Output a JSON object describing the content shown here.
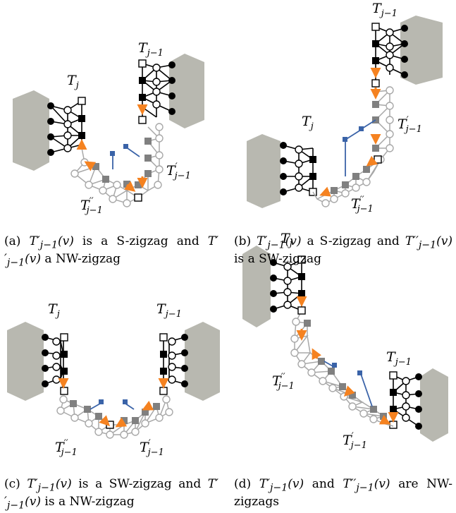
{
  "colors": {
    "gray_region": "#b8b8b0",
    "gray_node": "#808080",
    "gray_edge": "#a8a8a8",
    "black": "#000000",
    "orange": "#f58220",
    "blue": "#3a63a8"
  },
  "labels": {
    "Tj": "T_j",
    "Tjm1": "T_{j-1}",
    "Tp": "T'_{j-1}",
    "Tpp": "T''_{j-1}"
  },
  "label_text": {
    "T": "T",
    "j": "j",
    "jm1": "j−1",
    "prime": "′",
    "dprime": "′′"
  },
  "captions": {
    "a": "(a) T′_{j−1}(v) is a S-zigzag and T′′_{j−1}(v) a NW-zigzag",
    "b": "(b) T′_{j−1}(v) a S-zigzag and T′′_{j−1}(v) is a SW-zigzag",
    "c": "(c) T′_{j−1}(v) is a SW-zigzag and T′′_{j−1}(v) is a NW-zigzag",
    "d": "(d) T′_{j−1}(v) and T′′_{j−1}(v) are NW-zigzags"
  },
  "caption_parts": {
    "a": {
      "tag": "(a)",
      "t1": "T′",
      "s1": "j−1",
      "v1": "(v)",
      "mid": " is a S-zigzag and ",
      "t2": "T′′",
      "s2": "j−1",
      "v2": "(v)",
      "end": " a NW-zigzag"
    },
    "b": {
      "tag": "(b)",
      "t1": "T′",
      "s1": "j−1",
      "v1": "(v)",
      "mid": " a S-zigzag and ",
      "t2": "T′′",
      "s2": "j−1",
      "v2": "(v)",
      "end": " is a SW-zigzag"
    },
    "c": {
      "tag": "(c)",
      "t1": "T′",
      "s1": "j−1",
      "v1": "(v)",
      "mid": " is a SW-zigzag and ",
      "t2": "T′′",
      "s2": "j−1",
      "v2": "(v)",
      "end": " is a NW-zigzag"
    },
    "d": {
      "tag": "(d)",
      "t1": "T′",
      "s1": "j−1",
      "v1": "(v)",
      "mid": " and ",
      "t2": "T′′",
      "s2": "j−1",
      "v2": "(v)",
      "end": " are NW-zigzags"
    }
  }
}
